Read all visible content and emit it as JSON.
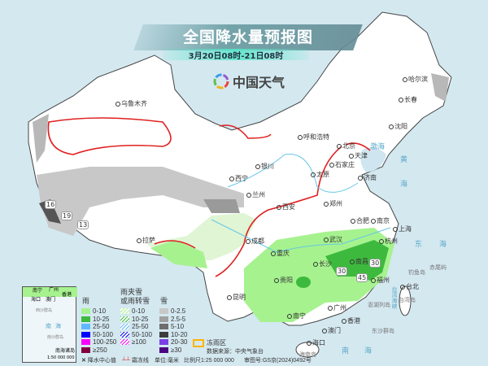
{
  "header": {
    "title": "全国降水量预报图",
    "subtitle": "3月20日08时-21日08时",
    "logo_text": "中国天气"
  },
  "cities": [
    {
      "name": "乌鲁木齐"
    },
    {
      "name": "哈尔滨"
    },
    {
      "name": "长春"
    },
    {
      "name": "沈阳"
    },
    {
      "name": "呼和浩特"
    },
    {
      "name": "北京"
    },
    {
      "name": "天津"
    },
    {
      "name": "石家庄"
    },
    {
      "name": "太原"
    },
    {
      "name": "济南"
    },
    {
      "name": "银川"
    },
    {
      "name": "西宁"
    },
    {
      "name": "兰州"
    },
    {
      "name": "西安"
    },
    {
      "name": "郑州"
    },
    {
      "name": "合肥"
    },
    {
      "name": "南京"
    },
    {
      "name": "上海"
    },
    {
      "name": "武汉"
    },
    {
      "name": "杭州"
    },
    {
      "name": "长沙"
    },
    {
      "name": "南昌"
    },
    {
      "name": "福州"
    },
    {
      "name": "台北"
    },
    {
      "name": "重庆"
    },
    {
      "name": "成都"
    },
    {
      "name": "贵阳"
    },
    {
      "name": "拉萨"
    },
    {
      "name": "昆明"
    },
    {
      "name": "南宁"
    },
    {
      "name": "广州"
    },
    {
      "name": "香港"
    },
    {
      "name": "澳门"
    },
    {
      "name": "海口"
    }
  ],
  "places": {
    "taiwan_island": "台湾岛",
    "penghu": "澎湖列岛",
    "diaoyu": "钓鱼岛",
    "chiwei": "赤尾屿",
    "dongsha": "东沙群岛",
    "hainan": "海南岛"
  },
  "seas": {
    "bohai": "渤海",
    "yellow_sea_1": "黄",
    "yellow_sea_2": "海",
    "east_sea_1": "东",
    "east_sea_2": "海",
    "strait": "台湾海峡",
    "south_sea_1": "南",
    "south_sea_2": "海"
  },
  "precip_centers": [
    {
      "value": "16"
    },
    {
      "value": "19"
    },
    {
      "value": "13"
    },
    {
      "value": "30"
    },
    {
      "value": "30"
    },
    {
      "value": "45"
    }
  ],
  "inset": {
    "labels": [
      "南宁",
      "海口",
      "广州",
      "香港",
      "澳门",
      "西沙群岛",
      "南沙群岛",
      "南",
      "海"
    ],
    "title": "南海诸岛",
    "scale": "1:50 000 000"
  },
  "legend": {
    "rain": {
      "title": "雨",
      "items": [
        {
          "label": "0-10",
          "color": "#a6f28f"
        },
        {
          "label": "10-25",
          "color": "#3dba3d"
        },
        {
          "label": "25-50",
          "color": "#61b8ff"
        },
        {
          "label": "50-100",
          "color": "#0000ff"
        },
        {
          "label": "100-250",
          "color": "#fa00fa"
        },
        {
          "label": "≥250",
          "color": "#800040"
        }
      ]
    },
    "sleet": {
      "title1": "雨夹雪",
      "title2": "或雨转雪",
      "items": [
        {
          "label": "0-10",
          "color": "#a6f28f"
        },
        {
          "label": "10-25",
          "color": "#3dba3d"
        },
        {
          "label": "25-50",
          "color": "#61b8ff"
        },
        {
          "label": "50-100",
          "color": "#0000ff"
        },
        {
          "label": "≥100",
          "color": "#fa00fa"
        }
      ]
    },
    "snow": {
      "title": "雪",
      "items": [
        {
          "label": "0-2.5",
          "color": "#c8c8c8"
        },
        {
          "label": "2.5-5",
          "color": "#a0a0a0"
        },
        {
          "label": "5-10",
          "color": "#6e6e6e"
        },
        {
          "label": "10-20",
          "color": "#3c3c3c"
        },
        {
          "label": "20-30",
          "color": "#7b3fe4"
        },
        {
          "label": "≥30",
          "color": "#4b0082"
        }
      ]
    },
    "freezing_rain": {
      "label": "冻雨区",
      "color": "#ffb400"
    },
    "center_label": "降水中心值",
    "frost_label": "霜冻线",
    "unit": "单位:毫米",
    "source": "数据来源：中央气象台",
    "scale": "比例尺1:25 000 000",
    "review": "审图号:GS京(2024)0492号"
  }
}
